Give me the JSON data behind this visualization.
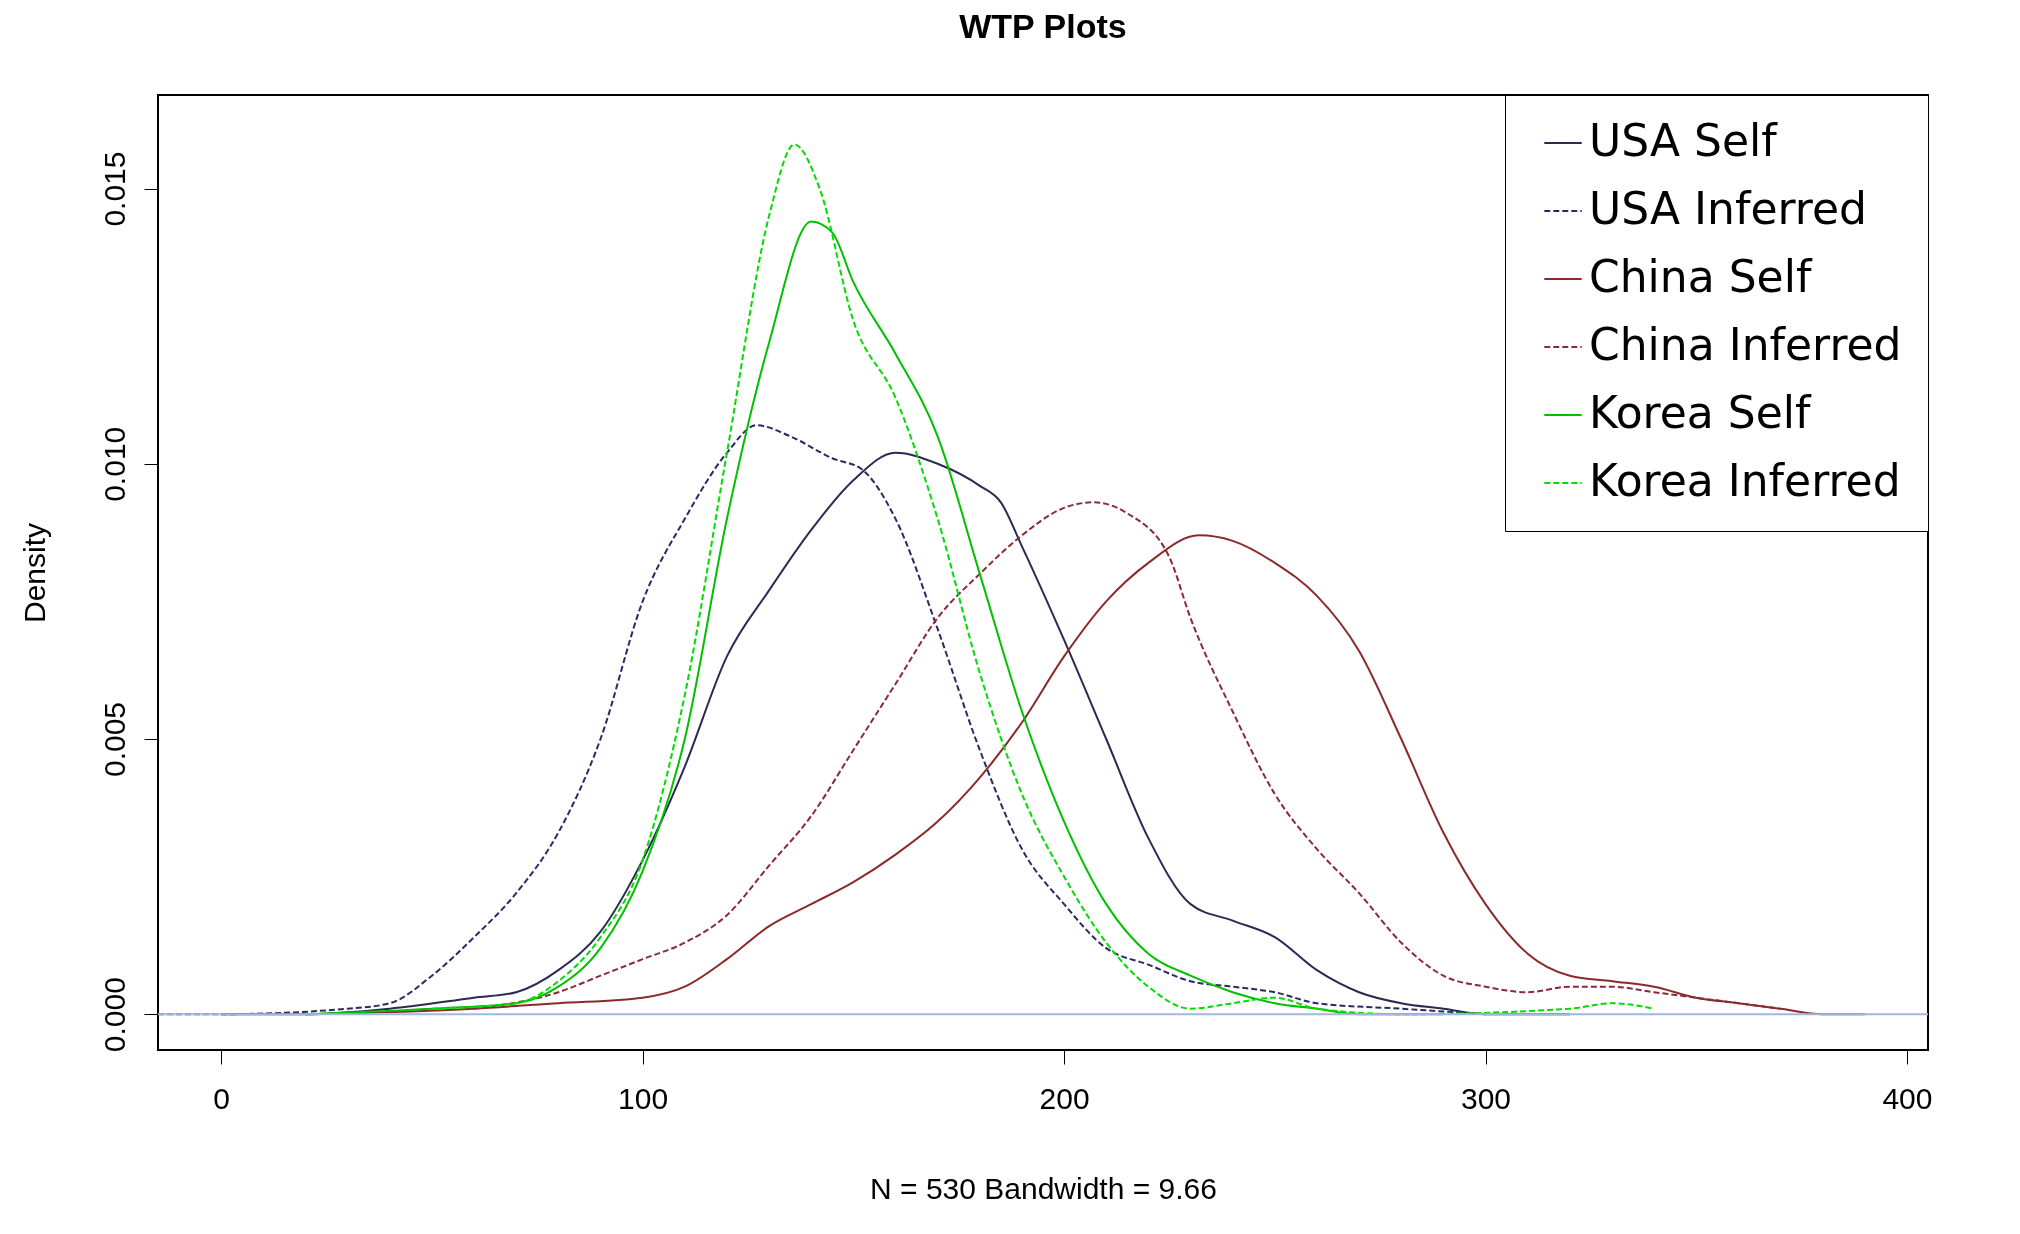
{
  "chart_data": {
    "type": "line",
    "title": "WTP Plots",
    "xlabel": "N = 530   Bandwidth = 9.66",
    "ylabel": "Density",
    "xlim": [
      -15,
      405
    ],
    "ylim": [
      -0.00065,
      0.0167
    ],
    "xticks": [
      0,
      100,
      200,
      300,
      400
    ],
    "yticks": [
      {
        "value": 0,
        "label": "0.000"
      },
      {
        "value": 0.005,
        "label": "0.005"
      },
      {
        "value": 0.01,
        "label": "0.010"
      },
      {
        "value": 0.015,
        "label": "0.015"
      }
    ],
    "grid": false,
    "legend": "top right",
    "marker": "none",
    "ref_lines": [
      {
        "axis": "y",
        "value": 0,
        "color": "#a0b8e0"
      }
    ],
    "series": [
      {
        "name": "USA Self",
        "color": "#2a2a55",
        "line_style": "solid",
        "x": [
          0,
          20,
          40,
          60,
          70,
          80,
          90,
          100,
          110,
          120,
          130,
          140,
          150,
          160,
          170,
          180,
          185,
          190,
          200,
          210,
          220,
          230,
          240,
          250,
          260,
          270,
          280,
          290,
          300,
          320
        ],
        "values": [
          0,
          0,
          0.0001,
          0.0003,
          0.0004,
          0.0008,
          0.0015,
          0.0028,
          0.0045,
          0.0065,
          0.0077,
          0.0088,
          0.0097,
          0.0102,
          0.01,
          0.0096,
          0.0093,
          0.0085,
          0.0068,
          0.005,
          0.0032,
          0.002,
          0.0017,
          0.0014,
          0.0008,
          0.0004,
          0.0002,
          0.0001,
          0,
          0
        ]
      },
      {
        "name": "USA Inferred",
        "color": "#2a2a66",
        "line_style": "dashed",
        "x": [
          -15,
          0,
          30,
          40,
          50,
          60,
          70,
          80,
          90,
          100,
          110,
          120,
          127,
          135,
          145,
          152,
          160,
          170,
          180,
          190,
          200,
          210,
          220,
          230,
          240,
          250,
          260,
          280,
          300
        ],
        "values": [
          0,
          0,
          0.0001,
          0.0002,
          0.0007,
          0.0014,
          0.0022,
          0.0033,
          0.005,
          0.0075,
          0.009,
          0.0102,
          0.0107,
          0.0105,
          0.0101,
          0.0099,
          0.009,
          0.007,
          0.0048,
          0.003,
          0.002,
          0.0012,
          0.0009,
          0.0006,
          0.0005,
          0.0004,
          0.0002,
          0.0001,
          0
        ]
      },
      {
        "name": "China Self",
        "color": "#8b2a2a",
        "line_style": "solid",
        "x": [
          20,
          60,
          80,
          100,
          110,
          120,
          130,
          140,
          150,
          160,
          170,
          180,
          190,
          200,
          210,
          220,
          232,
          240,
          250,
          260,
          270,
          280,
          290,
          300,
          310,
          320,
          330,
          340,
          350,
          360,
          370,
          380,
          390
        ],
        "values": [
          0,
          0.0001,
          0.0002,
          0.0003,
          0.0005,
          0.001,
          0.0016,
          0.002,
          0.0024,
          0.0029,
          0.0035,
          0.0043,
          0.0053,
          0.0065,
          0.0075,
          0.0082,
          0.0087,
          0.0086,
          0.0082,
          0.0076,
          0.0066,
          0.005,
          0.0033,
          0.002,
          0.0011,
          0.0007,
          0.0006,
          0.0005,
          0.0003,
          0.0002,
          0.0001,
          0,
          0
        ]
      },
      {
        "name": "China Inferred",
        "color": "#8b2a3a",
        "line_style": "dashed",
        "x": [
          60,
          80,
          90,
          100,
          110,
          120,
          130,
          140,
          150,
          160,
          170,
          180,
          190,
          200,
          207,
          215,
          225,
          230,
          240,
          250,
          260,
          270,
          280,
          290,
          300,
          310,
          320,
          330,
          340,
          350,
          360,
          370
        ],
        "values": [
          0.0001,
          0.0004,
          0.0007,
          0.001,
          0.0013,
          0.0018,
          0.0027,
          0.0036,
          0.0048,
          0.006,
          0.0072,
          0.008,
          0.0087,
          0.0092,
          0.0093,
          0.0091,
          0.0083,
          0.0072,
          0.0055,
          0.004,
          0.003,
          0.0022,
          0.0013,
          0.0007,
          0.0005,
          0.0004,
          0.0005,
          0.0005,
          0.0004,
          0.0003,
          0.0002,
          0.0001
        ]
      },
      {
        "name": "Korea Self",
        "color": "#00c000",
        "line_style": "solid",
        "x": [
          20,
          50,
          70,
          80,
          90,
          100,
          110,
          120,
          130,
          140,
          145,
          150,
          160,
          170,
          180,
          190,
          200,
          210,
          220,
          230,
          240,
          250,
          260,
          270,
          290
        ],
        "values": [
          0,
          0.0001,
          0.0002,
          0.0005,
          0.0012,
          0.0026,
          0.005,
          0.009,
          0.0122,
          0.0144,
          0.0142,
          0.0133,
          0.012,
          0.0105,
          0.008,
          0.0055,
          0.0035,
          0.002,
          0.0011,
          0.0007,
          0.0004,
          0.0002,
          0.0001,
          0,
          0
        ]
      },
      {
        "name": "Korea Inferred",
        "color": "#00dd00",
        "line_style": "dashed",
        "x": [
          50,
          70,
          80,
          90,
          100,
          110,
          120,
          130,
          136,
          142,
          150,
          160,
          170,
          180,
          190,
          200,
          210,
          220,
          230,
          240,
          250,
          260,
          280,
          320,
          330,
          340
        ],
        "values": [
          0.0001,
          0.0002,
          0.0006,
          0.0014,
          0.0028,
          0.0058,
          0.0102,
          0.0145,
          0.0158,
          0.015,
          0.0126,
          0.0112,
          0.009,
          0.0062,
          0.004,
          0.0025,
          0.0013,
          0.0005,
          0.0001,
          0.0002,
          0.0003,
          0.0001,
          0,
          0.0001,
          0.0002,
          0.0001
        ]
      }
    ]
  }
}
